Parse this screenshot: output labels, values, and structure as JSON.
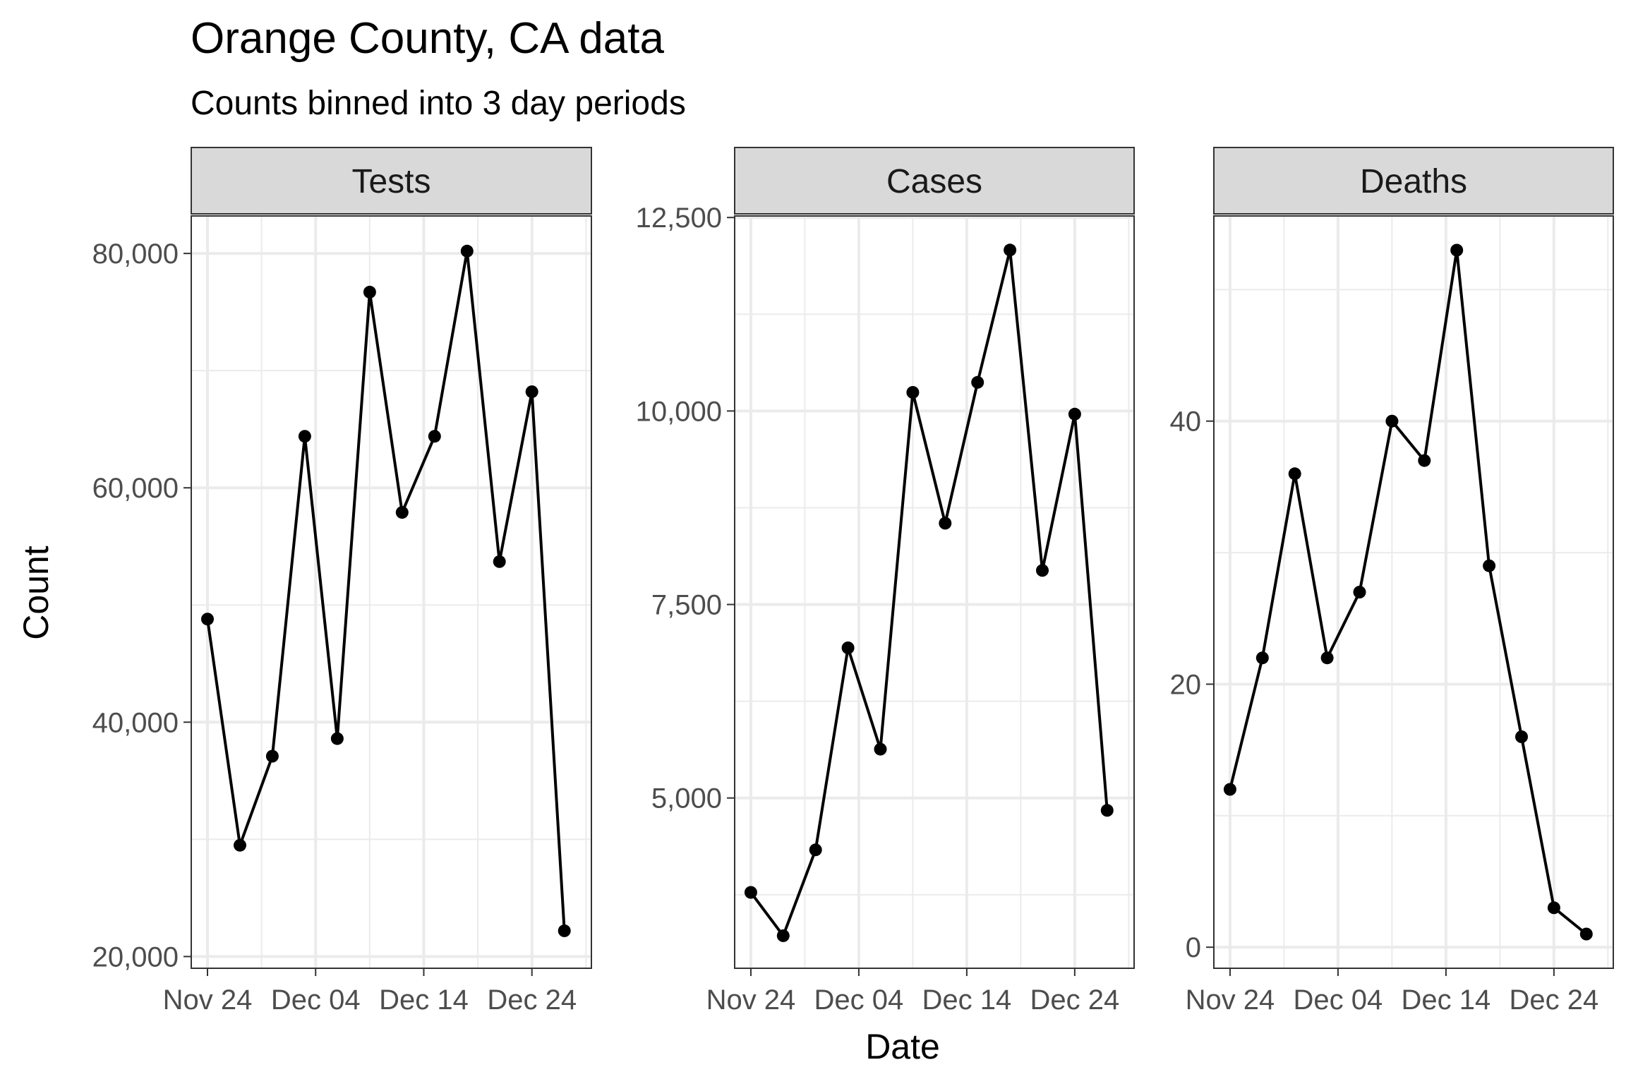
{
  "title": "Orange County, CA data",
  "subtitle": "Counts binned into 3 day periods",
  "xlabel": "Date",
  "ylabel": "Count",
  "chart_data": [
    {
      "type": "line",
      "panel": "Tests",
      "x": [
        "2020-11-24",
        "2020-11-27",
        "2020-11-30",
        "2020-12-03",
        "2020-12-06",
        "2020-12-09",
        "2020-12-12",
        "2020-12-15",
        "2020-12-18",
        "2020-12-21",
        "2020-12-24",
        "2020-12-27"
      ],
      "y": [
        48800,
        29500,
        37100,
        64400,
        38600,
        76700,
        57900,
        64400,
        80200,
        53700,
        68200,
        22200
      ],
      "xticks": [
        "Nov 24",
        "Dec 04",
        "Dec 14",
        "Dec 24"
      ],
      "yticks": [
        "20,000",
        "40,000",
        "60,000",
        "80,000"
      ],
      "ytick_values": [
        20000,
        40000,
        60000,
        80000
      ],
      "ylim": [
        19000,
        83200
      ]
    },
    {
      "type": "line",
      "panel": "Cases",
      "x": [
        "2020-11-24",
        "2020-11-27",
        "2020-11-30",
        "2020-12-03",
        "2020-12-06",
        "2020-12-09",
        "2020-12-12",
        "2020-12-15",
        "2020-12-18",
        "2020-12-21",
        "2020-12-24",
        "2020-12-27"
      ],
      "y": [
        3780,
        3220,
        4330,
        6940,
        5630,
        10240,
        8550,
        10370,
        12080,
        7940,
        9960,
        4840
      ],
      "xticks": [
        "Nov 24",
        "Dec 04",
        "Dec 14",
        "Dec 24"
      ],
      "yticks": [
        "5,000",
        "7,500",
        "10,000",
        "12,500"
      ],
      "ytick_values": [
        5000,
        7500,
        10000,
        12500
      ],
      "ylim": [
        2800,
        12520
      ]
    },
    {
      "type": "line",
      "panel": "Deaths",
      "x": [
        "2020-11-24",
        "2020-11-27",
        "2020-11-30",
        "2020-12-03",
        "2020-12-06",
        "2020-12-09",
        "2020-12-12",
        "2020-12-15",
        "2020-12-18",
        "2020-12-21",
        "2020-12-24",
        "2020-12-27"
      ],
      "y": [
        12,
        22,
        36,
        22,
        27,
        40,
        37,
        53,
        29,
        16,
        3,
        1
      ],
      "xticks": [
        "Nov 24",
        "Dec 04",
        "Dec 14",
        "Dec 24"
      ],
      "yticks": [
        "0",
        "20",
        "40"
      ],
      "ytick_values": [
        0,
        20,
        40
      ],
      "ylim": [
        -1.6,
        55.6
      ]
    }
  ]
}
